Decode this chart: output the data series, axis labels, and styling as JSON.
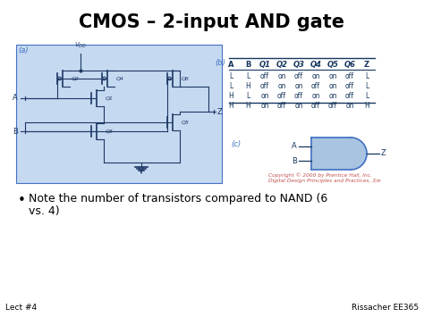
{
  "title": "CMOS – 2-input AND gate",
  "bg_color": "#ffffff",
  "title_color": "#000000",
  "title_fontsize": 15,
  "circuit_bg": "#c5d9f1",
  "circuit_border": "#4472c4",
  "circuit_label": "(a)",
  "table_label": "(b)",
  "gate_label": "(c)",
  "table_headers": [
    "A",
    "B",
    "Q1",
    "Q2",
    "Q3",
    "Q4",
    "Q5",
    "Q6",
    "Z"
  ],
  "table_rows": [
    [
      "L",
      "L",
      "off",
      "on",
      "off",
      "on",
      "on",
      "off",
      "L"
    ],
    [
      "L",
      "H",
      "off",
      "on",
      "on",
      "off",
      "on",
      "off",
      "L"
    ],
    [
      "H",
      "L",
      "on",
      "off",
      "off",
      "on",
      "on",
      "off",
      "L"
    ],
    [
      "H",
      "H",
      "on",
      "off",
      "on",
      "off",
      "off",
      "on",
      "H"
    ]
  ],
  "bullet_text_line1": "Note the number of transistors compared to NAND (6",
  "bullet_text_line2": "vs. 4)",
  "footer_left": "Lect #4",
  "footer_right": "Rissacher EE365",
  "copyright_text": "Copyright © 2000 by Prentice Hall, Inc.\nDigital Design Principles and Practices, 3/e",
  "copyright_color": "#c0504d",
  "gate_color": "#4472c4",
  "dark_blue": "#1f3864",
  "medium_blue": "#2e4d8a",
  "table_blue": "#17375e"
}
